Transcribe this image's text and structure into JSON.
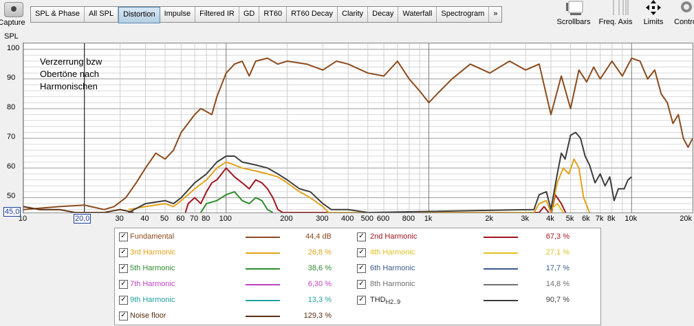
{
  "toolbar": {
    "capture_label": "Capture",
    "tabs": [
      "SPL & Phase",
      "All SPL",
      "Distortion",
      "Impulse",
      "Filtered IR",
      "GD",
      "RT60",
      "RT60 Decay",
      "Clarity",
      "Decay",
      "Waterfall",
      "Spectrogram",
      "»"
    ],
    "active_tab": "Distortion",
    "right": [
      {
        "label": "Scrollbars",
        "icon": "scrollbars-icon"
      },
      {
        "label": "Freq. Axis",
        "icon": "freq-axis-icon"
      },
      {
        "label": "Limits",
        "icon": "limits-icon"
      },
      {
        "label": "Contro",
        "icon": "controls-gear-icon"
      }
    ]
  },
  "chart_data": {
    "type": "line",
    "ylabel": "SPL",
    "annotation": "Verzerrung bzw\nObertöne nach\nHarmonischen",
    "xscale": "log",
    "xlim": [
      10,
      20000
    ],
    "ylim": [
      45,
      102
    ],
    "yticks": [
      50,
      60,
      70,
      80,
      90,
      100
    ],
    "xticks": [
      {
        "v": 10,
        "t": "10"
      },
      {
        "v": 30,
        "t": "30"
      },
      {
        "v": 40,
        "t": "40"
      },
      {
        "v": 50,
        "t": "50"
      },
      {
        "v": 60,
        "t": "60"
      },
      {
        "v": 70,
        "t": "70"
      },
      {
        "v": 80,
        "t": "80"
      },
      {
        "v": 100,
        "t": "100"
      },
      {
        "v": 200,
        "t": "200"
      },
      {
        "v": 300,
        "t": "300"
      },
      {
        "v": 400,
        "t": "400"
      },
      {
        "v": 500,
        "t": "500"
      },
      {
        "v": 600,
        "t": "600"
      },
      {
        "v": 800,
        "t": "800"
      },
      {
        "v": 1000,
        "t": "1k"
      },
      {
        "v": 2000,
        "t": "2k"
      },
      {
        "v": 3000,
        "t": "3k"
      },
      {
        "v": 4000,
        "t": "4k"
      },
      {
        "v": 5000,
        "t": "5k"
      },
      {
        "v": 6000,
        "t": "6k"
      },
      {
        "v": 7000,
        "t": "7k"
      },
      {
        "v": 8000,
        "t": "8k"
      },
      {
        "v": 10000,
        "t": "10k"
      },
      {
        "v": 20000,
        "t": "20k"
      }
    ],
    "cursor": {
      "x": 20.0,
      "x_label": "20,0",
      "y_label": "45,0"
    },
    "grid": true,
    "series": [
      {
        "name": "Fundamental",
        "color": "#8B4A1C",
        "value": "44,4 dB",
        "points": [
          [
            10,
            46
          ],
          [
            15,
            47
          ],
          [
            20,
            47.5
          ],
          [
            25,
            46
          ],
          [
            28,
            47
          ],
          [
            32,
            50
          ],
          [
            36,
            55
          ],
          [
            40,
            60
          ],
          [
            45,
            65
          ],
          [
            50,
            63
          ],
          [
            55,
            66
          ],
          [
            60,
            72
          ],
          [
            70,
            78
          ],
          [
            75,
            80
          ],
          [
            80,
            79
          ],
          [
            85,
            78
          ],
          [
            90,
            84
          ],
          [
            100,
            92
          ],
          [
            110,
            95
          ],
          [
            120,
            96
          ],
          [
            130,
            91
          ],
          [
            140,
            96
          ],
          [
            160,
            97
          ],
          [
            180,
            95
          ],
          [
            200,
            96
          ],
          [
            250,
            95
          ],
          [
            300,
            93
          ],
          [
            350,
            96
          ],
          [
            400,
            95
          ],
          [
            500,
            92
          ],
          [
            600,
            91
          ],
          [
            700,
            96
          ],
          [
            800,
            90
          ],
          [
            900,
            86
          ],
          [
            1000,
            82
          ],
          [
            1100,
            85
          ],
          [
            1300,
            90
          ],
          [
            1600,
            95
          ],
          [
            2000,
            92
          ],
          [
            2500,
            96
          ],
          [
            3000,
            93
          ],
          [
            3500,
            95
          ],
          [
            4000,
            78
          ],
          [
            4500,
            91
          ],
          [
            5000,
            80
          ],
          [
            5500,
            93
          ],
          [
            6000,
            89
          ],
          [
            6500,
            94
          ],
          [
            7000,
            90
          ],
          [
            8000,
            96
          ],
          [
            9000,
            91
          ],
          [
            10000,
            97
          ],
          [
            11000,
            96
          ],
          [
            12000,
            90
          ],
          [
            13000,
            93
          ],
          [
            14000,
            85
          ],
          [
            15000,
            82
          ],
          [
            16000,
            75
          ],
          [
            17000,
            78
          ],
          [
            18000,
            70
          ],
          [
            19000,
            67
          ],
          [
            20000,
            70
          ]
        ]
      },
      {
        "name": "2nd Harmonic",
        "color": "#A0141E",
        "value": "67,3 %",
        "points": [
          [
            63,
            45
          ],
          [
            65,
            48
          ],
          [
            70,
            50
          ],
          [
            75,
            48
          ],
          [
            80,
            52
          ],
          [
            85,
            55
          ],
          [
            90,
            56
          ],
          [
            95,
            58
          ],
          [
            100,
            60
          ],
          [
            110,
            57
          ],
          [
            120,
            55
          ],
          [
            130,
            53
          ],
          [
            140,
            56
          ],
          [
            150,
            55
          ],
          [
            160,
            53
          ],
          [
            170,
            50
          ],
          [
            180,
            46
          ],
          [
            190,
            45
          ],
          [
            3500,
            45
          ],
          [
            3700,
            47
          ],
          [
            4000,
            44
          ],
          [
            4200,
            51
          ],
          [
            4500,
            48
          ],
          [
            4800,
            44
          ]
        ]
      },
      {
        "name": "3rd Harmonic",
        "color": "#E3A21A",
        "value": "26,8 %",
        "points": [
          [
            33,
            46
          ],
          [
            40,
            47
          ],
          [
            50,
            48
          ],
          [
            55,
            47
          ],
          [
            60,
            49
          ],
          [
            70,
            53
          ],
          [
            80,
            56
          ],
          [
            90,
            60
          ],
          [
            100,
            62
          ],
          [
            110,
            61
          ],
          [
            120,
            60
          ],
          [
            140,
            59
          ],
          [
            160,
            58
          ],
          [
            180,
            57
          ],
          [
            200,
            55
          ],
          [
            230,
            52
          ],
          [
            260,
            50
          ],
          [
            300,
            47
          ],
          [
            320,
            45
          ],
          [
            3300,
            45
          ],
          [
            3500,
            48
          ],
          [
            3800,
            49
          ],
          [
            4000,
            45
          ],
          [
            4300,
            55
          ],
          [
            4600,
            60
          ],
          [
            4900,
            58
          ],
          [
            5200,
            63
          ],
          [
            5500,
            60
          ],
          [
            5800,
            50
          ],
          [
            6200,
            45
          ]
        ]
      },
      {
        "name": "4th Harmonic",
        "color": "#E0C020",
        "value": "27,1 %",
        "points": [
          [
            4000,
            46
          ],
          [
            4300,
            48
          ],
          [
            4600,
            45
          ]
        ]
      },
      {
        "name": "5th Harmonic",
        "color": "#2E8B2E",
        "value": "38,6 %",
        "points": [
          [
            75,
            45
          ],
          [
            80,
            48
          ],
          [
            90,
            49
          ],
          [
            100,
            51
          ],
          [
            110,
            52
          ],
          [
            120,
            49
          ],
          [
            130,
            48
          ],
          [
            140,
            50
          ],
          [
            150,
            49
          ],
          [
            160,
            46
          ],
          [
            170,
            45
          ]
        ]
      },
      {
        "name": "6th Harmonic",
        "color": "#3C5A8C",
        "value": "17,7 %",
        "points": []
      },
      {
        "name": "7th Harmonic",
        "color": "#C040C0",
        "value": "6,30 %",
        "points": []
      },
      {
        "name": "8th Harmonic",
        "color": "#707070",
        "value": "14,8 %",
        "points": []
      },
      {
        "name": "9th Harmonic",
        "color": "#20A0A0",
        "value": "13,3 %",
        "points": []
      },
      {
        "name": "THD",
        "sub": "H2..9",
        "color": "#3C3C3C",
        "value": "90,7 %",
        "points": [
          [
            33,
            45
          ],
          [
            40,
            48
          ],
          [
            50,
            49
          ],
          [
            55,
            48
          ],
          [
            60,
            50
          ],
          [
            70,
            55
          ],
          [
            80,
            58
          ],
          [
            90,
            62
          ],
          [
            100,
            64
          ],
          [
            110,
            64
          ],
          [
            120,
            62
          ],
          [
            140,
            61
          ],
          [
            160,
            60
          ],
          [
            180,
            58
          ],
          [
            200,
            56
          ],
          [
            230,
            53
          ],
          [
            260,
            52
          ],
          [
            300,
            48
          ],
          [
            330,
            46
          ],
          [
            400,
            46
          ],
          [
            500,
            45
          ],
          [
            3300,
            46
          ],
          [
            3500,
            51
          ],
          [
            3800,
            52
          ],
          [
            4000,
            46
          ],
          [
            4300,
            58
          ],
          [
            4500,
            65
          ],
          [
            4700,
            63
          ],
          [
            5000,
            71
          ],
          [
            5300,
            72
          ],
          [
            5600,
            70
          ],
          [
            5900,
            64
          ],
          [
            6200,
            61
          ],
          [
            6600,
            55
          ],
          [
            7000,
            58
          ],
          [
            7400,
            54
          ],
          [
            7800,
            57
          ],
          [
            8200,
            49
          ],
          [
            8600,
            53
          ],
          [
            9200,
            53
          ],
          [
            9600,
            56
          ],
          [
            10000,
            57
          ]
        ]
      },
      {
        "name": "Noise floor",
        "color": "#5A2E12",
        "value": "129,3 %",
        "points": [
          [
            10,
            47
          ],
          [
            12,
            46
          ],
          [
            15,
            46
          ],
          [
            18,
            45
          ],
          [
            20,
            45
          ],
          [
            25,
            45
          ],
          [
            30,
            46
          ],
          [
            35,
            45
          ]
        ]
      }
    ]
  },
  "legend": [
    {
      "name": "Fundamental",
      "value": "44,4 dB",
      "color": "#8B4A1C",
      "col": 0
    },
    {
      "name": "2nd Harmonic",
      "value": "67,3 %",
      "color": "#A0141E",
      "col": 1
    },
    {
      "name": "3rd Harmonic",
      "value": "26,8 %",
      "color": "#E3A21A",
      "col": 0
    },
    {
      "name": "4th Harmonic",
      "value": "27,1 %",
      "color": "#E0C020",
      "col": 1
    },
    {
      "name": "5th Harmonic",
      "value": "38,6 %",
      "color": "#2E8B2E",
      "col": 0
    },
    {
      "name": "6th Harmonic",
      "value": "17,7 %",
      "color": "#3C5A8C",
      "col": 1
    },
    {
      "name": "7th Harmonic",
      "value": "6,30 %",
      "color": "#C040C0",
      "col": 0
    },
    {
      "name": "8th Harmonic",
      "value": "14,8 %",
      "color": "#707070",
      "col": 1
    },
    {
      "name": "9th Harmonic",
      "value": "13,3 %",
      "color": "#20A0A0",
      "col": 0
    },
    {
      "name": "THD",
      "sub": "H2..9",
      "value": "90,7 %",
      "color": "#3C3C3C",
      "col": 1
    },
    {
      "name": "Noise floor",
      "value": "129,3 %",
      "color": "#5A2E12",
      "col": 0
    }
  ],
  "legend_checkmark": "✓"
}
